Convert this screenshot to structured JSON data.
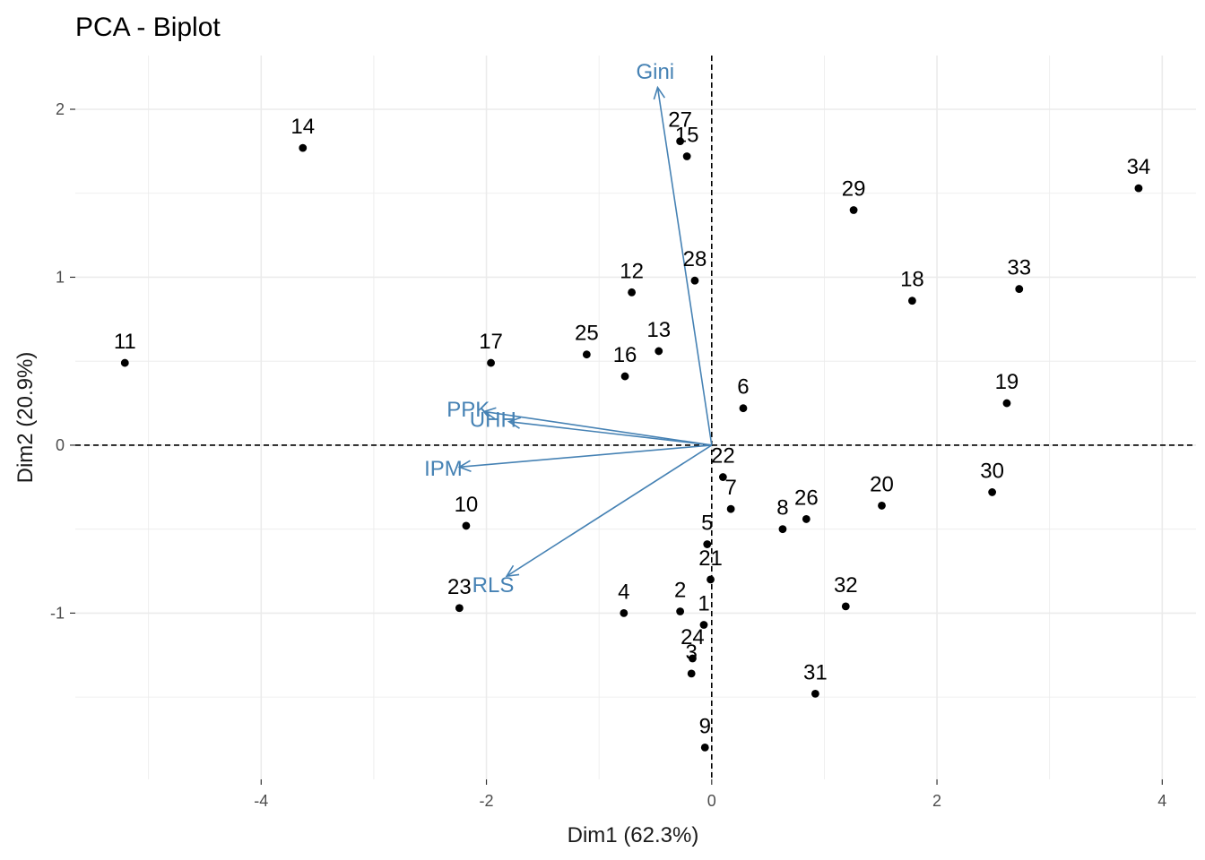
{
  "chart_data": {
    "type": "scatter",
    "title": "PCA - Biplot",
    "xlabel": "Dim1 (62.3%)",
    "ylabel": "Dim2 (20.9%)",
    "xlim": [
      -5.65,
      4.3
    ],
    "ylim": [
      -1.99,
      2.32
    ],
    "x_ticks": [
      -4,
      -2,
      0,
      2,
      4
    ],
    "y_ticks": [
      -1,
      0,
      1,
      2
    ],
    "x_tick_labels": [
      "-4",
      "-2",
      "0",
      "2",
      "4"
    ],
    "y_tick_labels": [
      "-1",
      "0",
      "1",
      "2"
    ],
    "grid": true,
    "reference_lines": {
      "x": 0,
      "y": 0,
      "style": "dashed"
    },
    "arrow_color": "#4682b4",
    "point_color": "#000000",
    "points": [
      {
        "label": "1",
        "x": -0.07,
        "y": -1.07
      },
      {
        "label": "2",
        "x": -0.28,
        "y": -0.99
      },
      {
        "label": "3",
        "x": -0.18,
        "y": -1.36
      },
      {
        "label": "4",
        "x": -0.78,
        "y": -1.0
      },
      {
        "label": "5",
        "x": -0.04,
        "y": -0.59
      },
      {
        "label": "6",
        "x": 0.28,
        "y": 0.22
      },
      {
        "label": "7",
        "x": 0.17,
        "y": -0.38
      },
      {
        "label": "8",
        "x": 0.63,
        "y": -0.5
      },
      {
        "label": "9",
        "x": -0.06,
        "y": -1.8
      },
      {
        "label": "10",
        "x": -2.18,
        "y": -0.48
      },
      {
        "label": "11",
        "x": -5.21,
        "y": 0.49
      },
      {
        "label": "12",
        "x": -0.71,
        "y": 0.91
      },
      {
        "label": "13",
        "x": -0.47,
        "y": 0.56
      },
      {
        "label": "14",
        "x": -3.63,
        "y": 1.77
      },
      {
        "label": "15",
        "x": -0.22,
        "y": 1.72
      },
      {
        "label": "16",
        "x": -0.77,
        "y": 0.41
      },
      {
        "label": "17",
        "x": -1.96,
        "y": 0.49
      },
      {
        "label": "18",
        "x": 1.78,
        "y": 0.86
      },
      {
        "label": "19",
        "x": 2.62,
        "y": 0.25
      },
      {
        "label": "20",
        "x": 1.51,
        "y": -0.36
      },
      {
        "label": "21",
        "x": -0.01,
        "y": -0.8
      },
      {
        "label": "22",
        "x": 0.1,
        "y": -0.19
      },
      {
        "label": "23",
        "x": -2.24,
        "y": -0.97
      },
      {
        "label": "24",
        "x": -0.17,
        "y": -1.27
      },
      {
        "label": "25",
        "x": -1.11,
        "y": 0.54
      },
      {
        "label": "26",
        "x": 0.84,
        "y": -0.44
      },
      {
        "label": "27",
        "x": -0.28,
        "y": 1.81
      },
      {
        "label": "28",
        "x": -0.15,
        "y": 0.98
      },
      {
        "label": "29",
        "x": 1.26,
        "y": 1.4
      },
      {
        "label": "30",
        "x": 2.49,
        "y": -0.28
      },
      {
        "label": "31",
        "x": 0.92,
        "y": -1.48
      },
      {
        "label": "32",
        "x": 1.19,
        "y": -0.96
      },
      {
        "label": "33",
        "x": 2.73,
        "y": 0.93
      },
      {
        "label": "34",
        "x": 3.79,
        "y": 1.53
      }
    ],
    "variables": [
      {
        "name": "Gini",
        "x": -0.48,
        "y": 2.13
      },
      {
        "name": "PPK",
        "x": -2.02,
        "y": 0.2
      },
      {
        "name": "UHH",
        "x": -1.8,
        "y": 0.14
      },
      {
        "name": "IPM",
        "x": -2.24,
        "y": -0.13
      },
      {
        "name": "RLS",
        "x": -1.82,
        "y": -0.78
      }
    ]
  }
}
